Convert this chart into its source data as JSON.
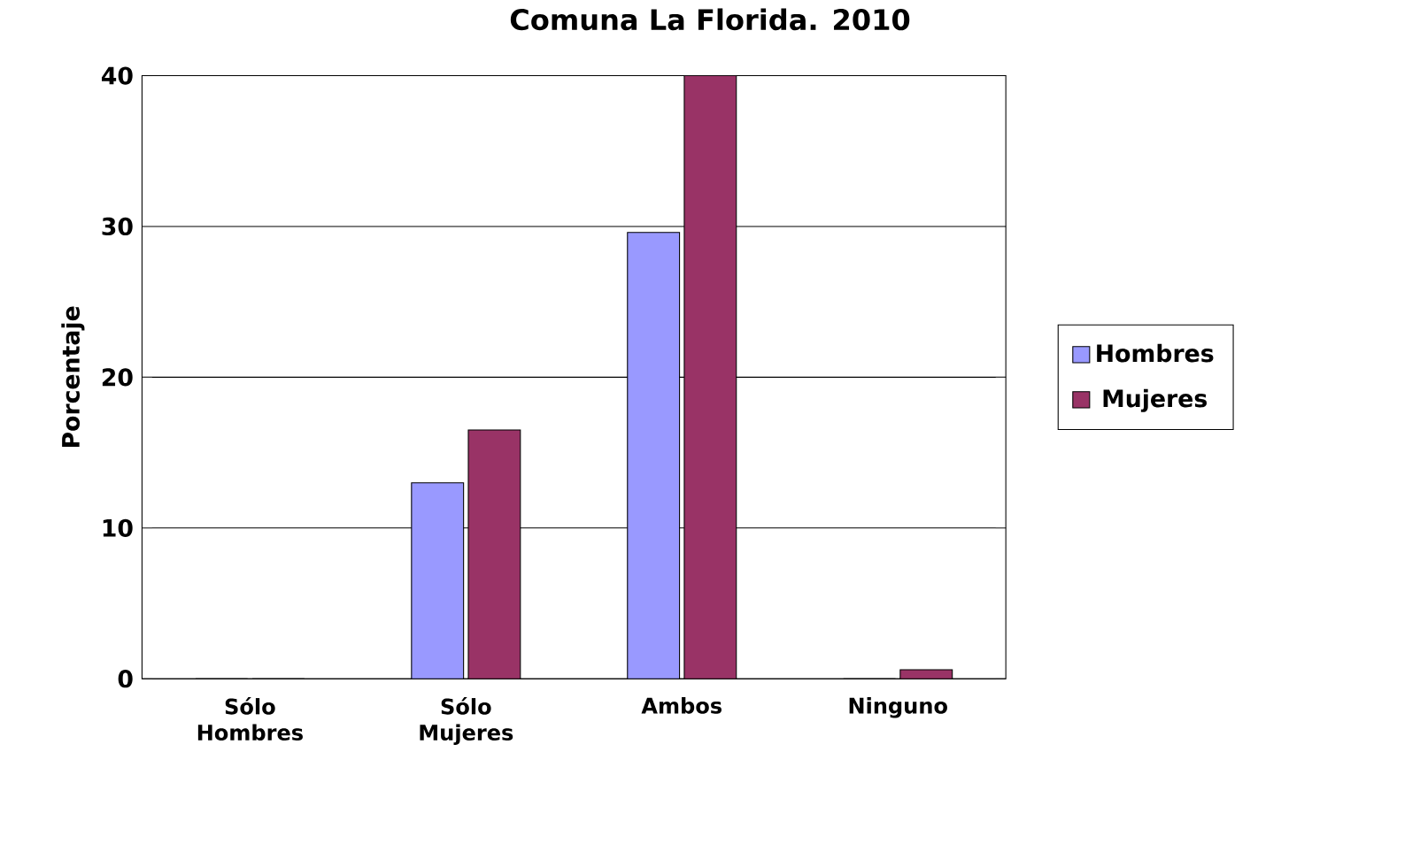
{
  "chart_data": {
    "type": "bar",
    "title": "Comuna La Florida. 2010",
    "ylabel": "Porcentaje",
    "categories": [
      "Sólo Hombres",
      "Sólo Mujeres",
      "Ambos",
      "Ninguno"
    ],
    "series": [
      {
        "name": "Hombres",
        "color": "#9999ff",
        "values": [
          0,
          13,
          29.6,
          0
        ]
      },
      {
        "name": "Mujeres",
        "color": "#993366",
        "values": [
          0,
          16.5,
          40,
          0.6
        ]
      }
    ],
    "ylim": [
      0,
      40
    ],
    "yticks": [
      0,
      10,
      20,
      30,
      40
    ],
    "grid": "y",
    "legend": "right"
  }
}
